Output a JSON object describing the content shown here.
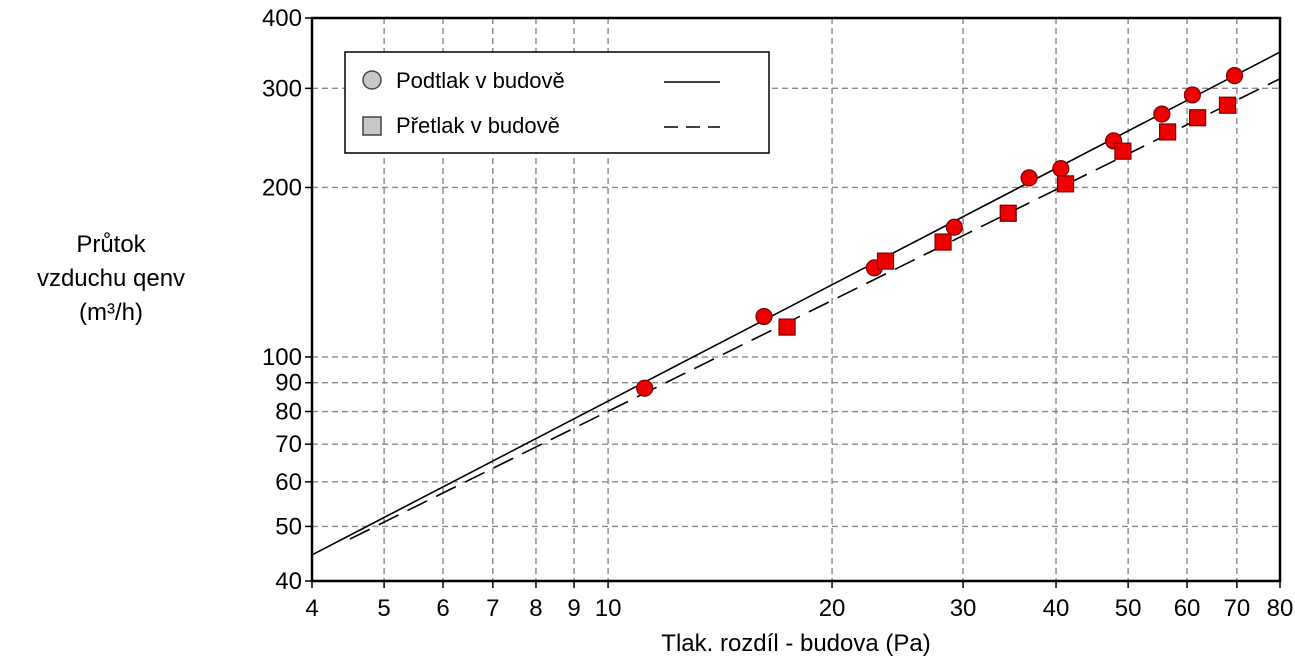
{
  "chart_data": {
    "type": "scatter",
    "title": "",
    "xlabel": "Tlak. rozdíl - budova (Pa)",
    "ylabel_lines": [
      "Průtok",
      "vzduchu qenv",
      "(m³/h)"
    ],
    "x_scale": "log",
    "y_scale": "log",
    "xlim": [
      4,
      80
    ],
    "ylim": [
      40,
      400
    ],
    "x_ticks": [
      4,
      5,
      6,
      7,
      8,
      9,
      10,
      20,
      30,
      40,
      50,
      60,
      70,
      80
    ],
    "y_ticks": [
      40,
      50,
      60,
      70,
      80,
      90,
      100,
      200,
      300,
      400
    ],
    "grid": true,
    "legend_position": "top-left",
    "series": [
      {
        "name": "Podtlak v budově",
        "marker": "circle",
        "line_style": "solid",
        "color": "#ee0000",
        "points": [
          [
            11.2,
            88
          ],
          [
            16.2,
            118
          ],
          [
            22.8,
            144
          ],
          [
            29.2,
            170
          ],
          [
            36.8,
            208
          ],
          [
            40.6,
            216
          ],
          [
            47.8,
            242
          ],
          [
            55.5,
            270
          ],
          [
            61.0,
            292
          ],
          [
            69.5,
            316
          ]
        ],
        "fit_line": [
          [
            4,
            44.5
          ],
          [
            80,
            348
          ]
        ]
      },
      {
        "name": "Přetlak v budově",
        "marker": "square",
        "line_style": "dashed",
        "color": "#ee0000",
        "points": [
          [
            17.4,
            113
          ],
          [
            23.6,
            148
          ],
          [
            28.2,
            160
          ],
          [
            34.5,
            180
          ],
          [
            41.2,
            203
          ],
          [
            49.2,
            232
          ],
          [
            56.5,
            251
          ],
          [
            62.0,
            266
          ],
          [
            68.0,
            280
          ]
        ],
        "fit_line": [
          [
            4.5,
            47.5
          ],
          [
            80,
            312
          ]
        ]
      }
    ]
  }
}
